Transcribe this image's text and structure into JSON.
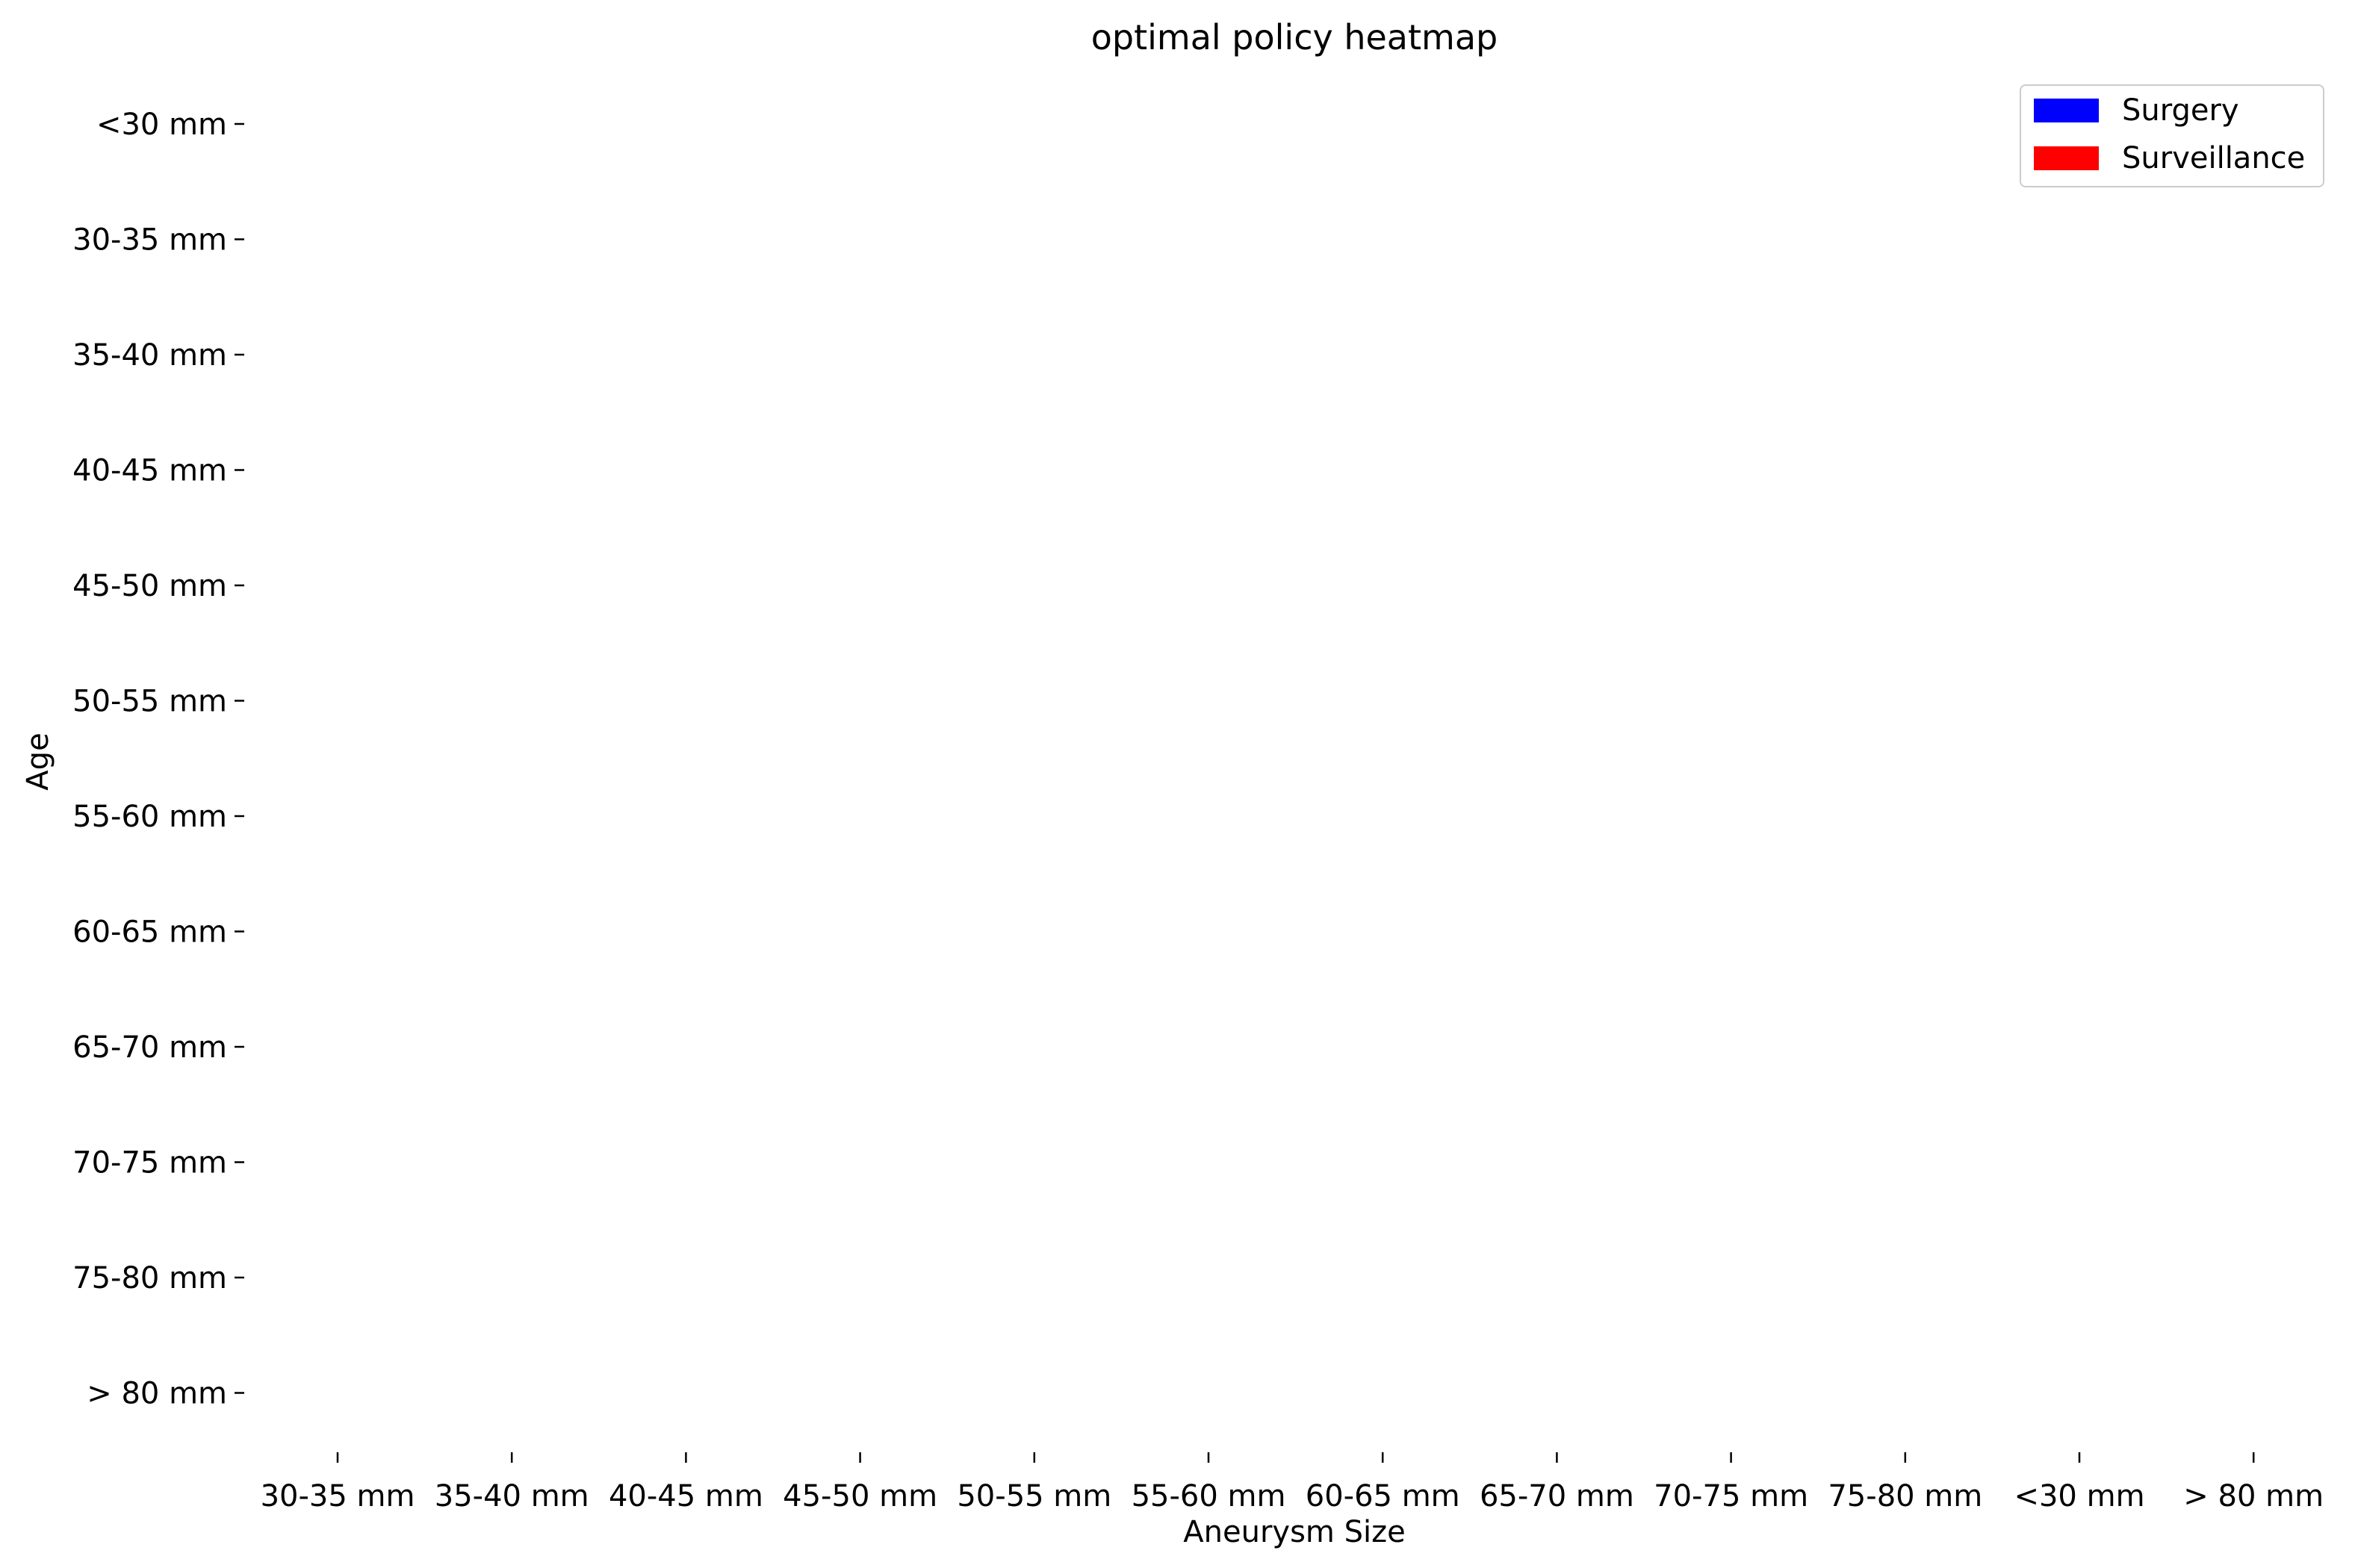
{
  "chart_data": {
    "type": "heatmap",
    "title": "optimal policy heatmap",
    "xlabel": "Aneurysm Size",
    "ylabel": "Age",
    "x_categories": [
      "30-35 mm",
      "35-40 mm",
      "40-45 mm",
      "45-50 mm",
      "50-55 mm",
      "55-60 mm",
      "60-65 mm",
      "65-70 mm",
      "70-75 mm",
      "75-80 mm",
      "<30 mm",
      "> 80 mm"
    ],
    "y_categories": [
      "<30 mm",
      "30-35 mm",
      "35-40 mm",
      "40-45 mm",
      "45-50 mm",
      "50-55 mm",
      "55-60 mm",
      "60-65 mm",
      "65-70 mm",
      "70-75 mm",
      "75-80 mm",
      "> 80 mm"
    ],
    "values": [],
    "legend": {
      "placement": "top-right",
      "entries": [
        {
          "label": "Surgery",
          "color": "#0000ff"
        },
        {
          "label": "Surveillance",
          "color": "#ff0000"
        }
      ]
    },
    "grid": false
  }
}
